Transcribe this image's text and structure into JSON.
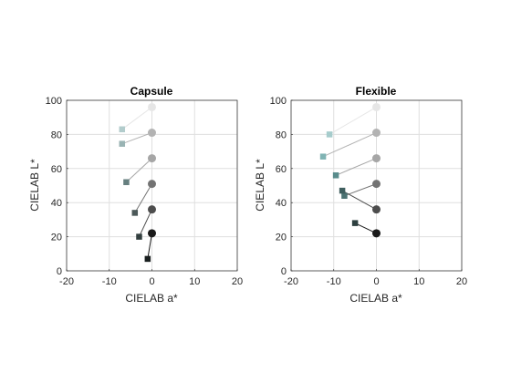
{
  "chart_data": [
    {
      "type": "scatter",
      "title": "Capsule",
      "xlabel": "CIELAB a*",
      "ylabel": "CIELAB L*",
      "xlim": [
        -20,
        20
      ],
      "ylim": [
        0,
        100
      ],
      "xticks": [
        "-20",
        "-10",
        "0",
        "10",
        "20"
      ],
      "yticks": [
        "0",
        "20",
        "40",
        "60",
        "80",
        "100"
      ],
      "grid": true,
      "pairs": [
        {
          "ref": [
            0,
            96
          ],
          "sample": [
            -7,
            83
          ],
          "color": "#e6e6e6",
          "sample_color": "#b2cccc"
        },
        {
          "ref": [
            0,
            81
          ],
          "sample": [
            -7,
            74.5
          ],
          "color": "#b3b3b3",
          "sample_color": "#99b3b3"
        },
        {
          "ref": [
            0,
            66
          ],
          "sample": [
            -6,
            52
          ],
          "color": "#a6a6a6",
          "sample_color": "#667f7f"
        },
        {
          "ref": [
            0,
            51
          ],
          "sample": [
            -4,
            34
          ],
          "color": "#737373",
          "sample_color": "#4c5959"
        },
        {
          "ref": [
            0,
            36
          ],
          "sample": [
            -3,
            20
          ],
          "color": "#4d4d4d",
          "sample_color": "#333f3f"
        },
        {
          "ref": [
            0,
            22
          ],
          "sample": [
            -1,
            7
          ],
          "color": "#1a1a1a",
          "sample_color": "#191f1f"
        }
      ]
    },
    {
      "type": "scatter",
      "title": "Flexible",
      "xlabel": "CIELAB a*",
      "ylabel": "CIELAB L*",
      "xlim": [
        -20,
        20
      ],
      "ylim": [
        0,
        100
      ],
      "xticks": [
        "-20",
        "-10",
        "0",
        "10",
        "20"
      ],
      "yticks": [
        "0",
        "20",
        "40",
        "60",
        "80",
        "100"
      ],
      "grid": true,
      "pairs": [
        {
          "ref": [
            0,
            96
          ],
          "sample": [
            -11,
            80
          ],
          "color": "#e6e6e6",
          "sample_color": "#a6cccc"
        },
        {
          "ref": [
            0,
            81
          ],
          "sample": [
            -12.5,
            67
          ],
          "color": "#b3b3b3",
          "sample_color": "#80b3b3"
        },
        {
          "ref": [
            0,
            66
          ],
          "sample": [
            -9.5,
            56
          ],
          "color": "#a6a6a6",
          "sample_color": "#598c8c"
        },
        {
          "ref": [
            0,
            51
          ],
          "sample": [
            -7.5,
            44
          ],
          "color": "#737373",
          "sample_color": "#4c7373"
        },
        {
          "ref": [
            0,
            36
          ],
          "sample": [
            -8,
            47
          ],
          "color": "#4d4d4d",
          "sample_color": "#3f5f5f"
        },
        {
          "ref": [
            0,
            22
          ],
          "sample": [
            -5,
            28
          ],
          "color": "#1a1a1a",
          "sample_color": "#2d4040"
        }
      ]
    }
  ]
}
